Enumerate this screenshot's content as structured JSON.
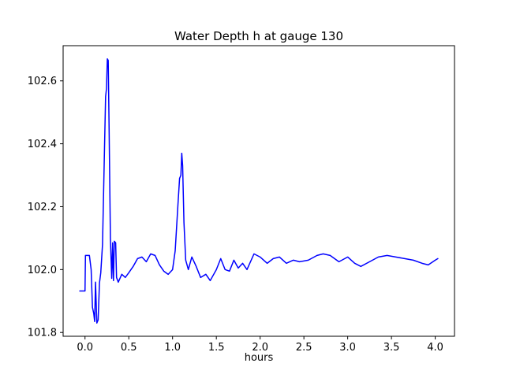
{
  "figure": {
    "title": "Water Depth h at gauge 130",
    "xlabel": "hours"
  },
  "chart_data": {
    "type": "line",
    "title": "Water Depth h at gauge 130",
    "xlabel": "hours",
    "ylabel": "",
    "line_color": "#0000ff",
    "background_color": "#ffffff",
    "grid": false,
    "legend": null,
    "xlim": [
      -0.25,
      4.22
    ],
    "ylim": [
      101.788,
      102.712
    ],
    "xticks": [
      0.0,
      0.5,
      1.0,
      1.5,
      2.0,
      2.5,
      3.0,
      3.5,
      4.0
    ],
    "yticks": [
      101.8,
      102.0,
      102.2,
      102.4,
      102.6
    ],
    "x": [
      -0.06,
      0.0,
      0.005,
      0.05,
      0.07,
      0.085,
      0.1,
      0.11,
      0.12,
      0.135,
      0.15,
      0.165,
      0.18,
      0.2,
      0.22,
      0.235,
      0.245,
      0.255,
      0.265,
      0.275,
      0.29,
      0.305,
      0.315,
      0.325,
      0.335,
      0.35,
      0.36,
      0.38,
      0.42,
      0.46,
      0.5,
      0.55,
      0.6,
      0.65,
      0.7,
      0.75,
      0.8,
      0.85,
      0.9,
      0.95,
      1.0,
      1.03,
      1.06,
      1.08,
      1.095,
      1.105,
      1.115,
      1.13,
      1.15,
      1.18,
      1.22,
      1.27,
      1.32,
      1.38,
      1.43,
      1.5,
      1.55,
      1.6,
      1.65,
      1.7,
      1.75,
      1.8,
      1.85,
      1.93,
      2.0,
      2.08,
      2.15,
      2.22,
      2.3,
      2.38,
      2.45,
      2.55,
      2.65,
      2.72,
      2.8,
      2.9,
      3.0,
      3.08,
      3.15,
      3.25,
      3.35,
      3.45,
      3.55,
      3.65,
      3.75,
      3.85,
      3.92,
      4.0,
      4.03
    ],
    "y": [
      101.932,
      101.932,
      102.045,
      102.045,
      102.0,
      101.88,
      101.86,
      101.835,
      101.96,
      101.83,
      101.84,
      101.957,
      101.99,
      102.08,
      102.35,
      102.55,
      102.575,
      102.67,
      102.665,
      102.45,
      102.1,
      101.972,
      102.085,
      101.965,
      102.09,
      102.085,
      101.975,
      101.96,
      101.985,
      101.975,
      101.99,
      102.01,
      102.035,
      102.04,
      102.025,
      102.05,
      102.045,
      102.015,
      101.995,
      101.985,
      102.0,
      102.06,
      102.2,
      102.29,
      102.3,
      102.37,
      102.33,
      102.15,
      102.03,
      102.0,
      102.04,
      102.01,
      101.975,
      101.985,
      101.965,
      102.0,
      102.035,
      102.0,
      101.995,
      102.03,
      102.005,
      102.02,
      102.0,
      102.05,
      102.04,
      102.02,
      102.035,
      102.04,
      102.02,
      102.03,
      102.025,
      102.03,
      102.045,
      102.05,
      102.045,
      102.025,
      102.04,
      102.02,
      102.01,
      102.025,
      102.04,
      102.045,
      102.04,
      102.035,
      102.03,
      102.02,
      102.015,
      102.03,
      102.035
    ]
  }
}
